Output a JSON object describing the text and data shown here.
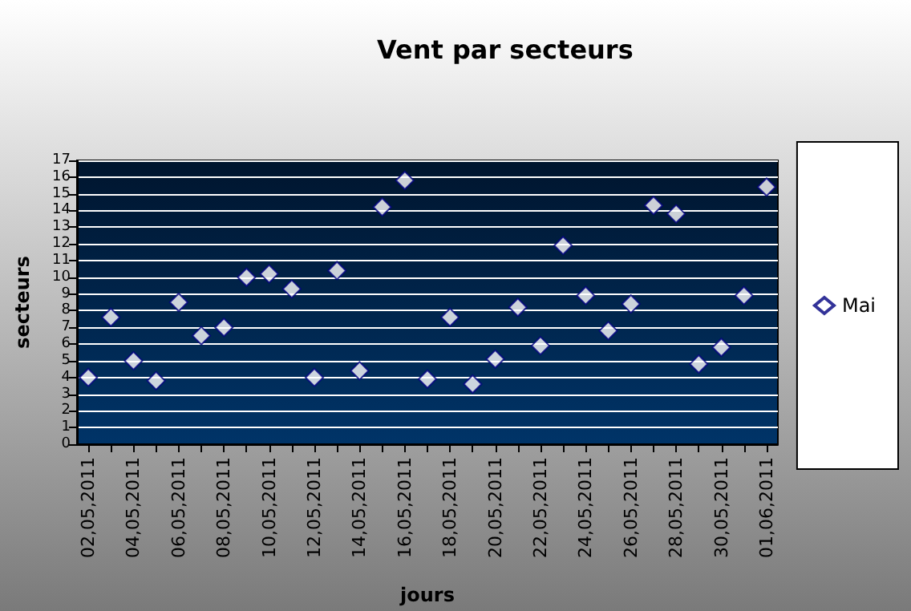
{
  "chart_data": {
    "type": "scatter",
    "title": "Vent par secteurs",
    "xlabel": "jours",
    "ylabel": "secteurs",
    "categories": [
      "02,05,2011",
      null,
      "04,05,2011",
      null,
      "06,05,2011",
      null,
      "08,05,2011",
      null,
      "10,05,2011",
      null,
      "12,05,2011",
      null,
      "14,05,2011",
      null,
      "16,05,2011",
      null,
      "18,05,2011",
      null,
      "20,05,2011",
      null,
      "22,05,2011",
      null,
      "24,05,2011",
      null,
      "26,05,2011",
      null,
      "28,05,2011",
      null,
      "30,05,2011",
      null,
      "01,06,2011"
    ],
    "series": [
      {
        "name": "Mai",
        "color": "#ffffff",
        "values": [
          4.0,
          7.6,
          5.0,
          3.8,
          8.5,
          6.5,
          7.0,
          10.0,
          10.2,
          9.3,
          4.0,
          10.4,
          4.4,
          14.2,
          15.8,
          3.9,
          7.6,
          3.6,
          5.1,
          8.2,
          5.9,
          11.9,
          8.9,
          6.8,
          8.4,
          14.3,
          13.8,
          4.8,
          5.8,
          8.9,
          15.4
        ]
      }
    ],
    "ylim": [
      0,
      17
    ],
    "yticks": [
      0,
      1,
      2,
      3,
      4,
      5,
      6,
      7,
      8,
      9,
      10,
      11,
      12,
      13,
      14,
      15,
      16,
      17
    ],
    "grid": "y",
    "legend": "right",
    "marker": "diamond"
  }
}
